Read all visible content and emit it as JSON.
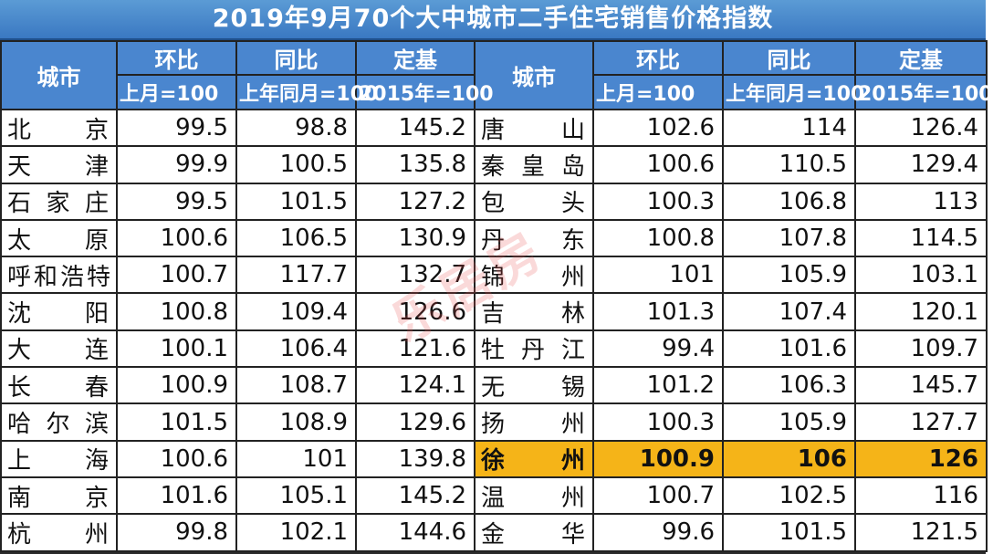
{
  "title": "2019年9月70个大中城市二手住宅销售价格指数",
  "headers": {
    "city": "城市",
    "mom": "环比",
    "yoy": "同比",
    "base": "定基",
    "mom_sub": "上月=100",
    "yoy_sub": "上年同月=100",
    "base_sub": "2015年=100"
  },
  "watermark": "乐居房",
  "highlight_color": "#f5b418",
  "rows": [
    {
      "left": {
        "city": "北京",
        "mom": "99.5",
        "yoy": "98.8",
        "base": "145.2"
      },
      "right": {
        "city": "唐山",
        "mom": "102.6",
        "yoy": "114",
        "base": "126.4"
      }
    },
    {
      "left": {
        "city": "天津",
        "mom": "99.9",
        "yoy": "100.5",
        "base": "135.8"
      },
      "right": {
        "city": "秦皇岛",
        "mom": "100.6",
        "yoy": "110.5",
        "base": "129.4"
      }
    },
    {
      "left": {
        "city": "石家庄",
        "mom": "99.5",
        "yoy": "101.5",
        "base": "127.2"
      },
      "right": {
        "city": "包头",
        "mom": "100.3",
        "yoy": "106.8",
        "base": "113"
      }
    },
    {
      "left": {
        "city": "太原",
        "mom": "100.6",
        "yoy": "106.5",
        "base": "130.9"
      },
      "right": {
        "city": "丹东",
        "mom": "100.8",
        "yoy": "107.8",
        "base": "114.5"
      }
    },
    {
      "left": {
        "city": "呼和浩特",
        "mom": "100.7",
        "yoy": "117.7",
        "base": "132.7"
      },
      "right": {
        "city": "锦州",
        "mom": "101",
        "yoy": "105.9",
        "base": "103.1"
      }
    },
    {
      "left": {
        "city": "沈阳",
        "mom": "100.8",
        "yoy": "109.4",
        "base": "126.6"
      },
      "right": {
        "city": "吉林",
        "mom": "101.3",
        "yoy": "107.4",
        "base": "120.1"
      }
    },
    {
      "left": {
        "city": "大连",
        "mom": "100.1",
        "yoy": "106.4",
        "base": "121.6"
      },
      "right": {
        "city": "牡丹江",
        "mom": "99.4",
        "yoy": "101.6",
        "base": "109.7"
      }
    },
    {
      "left": {
        "city": "长春",
        "mom": "100.9",
        "yoy": "108.7",
        "base": "124.1"
      },
      "right": {
        "city": "无锡",
        "mom": "101.2",
        "yoy": "106.3",
        "base": "145.7"
      }
    },
    {
      "left": {
        "city": "哈尔滨",
        "mom": "101.5",
        "yoy": "108.9",
        "base": "129.6"
      },
      "right": {
        "city": "扬州",
        "mom": "100.3",
        "yoy": "105.9",
        "base": "127.7"
      }
    },
    {
      "left": {
        "city": "上海",
        "mom": "100.6",
        "yoy": "101",
        "base": "139.8"
      },
      "right": {
        "city": "徐州",
        "mom": "100.9",
        "yoy": "106",
        "base": "126"
      }
    },
    {
      "left": {
        "city": "南京",
        "mom": "101.6",
        "yoy": "105.1",
        "base": "145.2"
      },
      "right": {
        "city": "温州",
        "mom": "100.7",
        "yoy": "102.5",
        "base": "116"
      }
    },
    {
      "left": {
        "city": "杭州",
        "mom": "99.8",
        "yoy": "102.1",
        "base": "144.6"
      },
      "right": {
        "city": "金华",
        "mom": "99.6",
        "yoy": "101.5",
        "base": "121.5"
      }
    }
  ]
}
